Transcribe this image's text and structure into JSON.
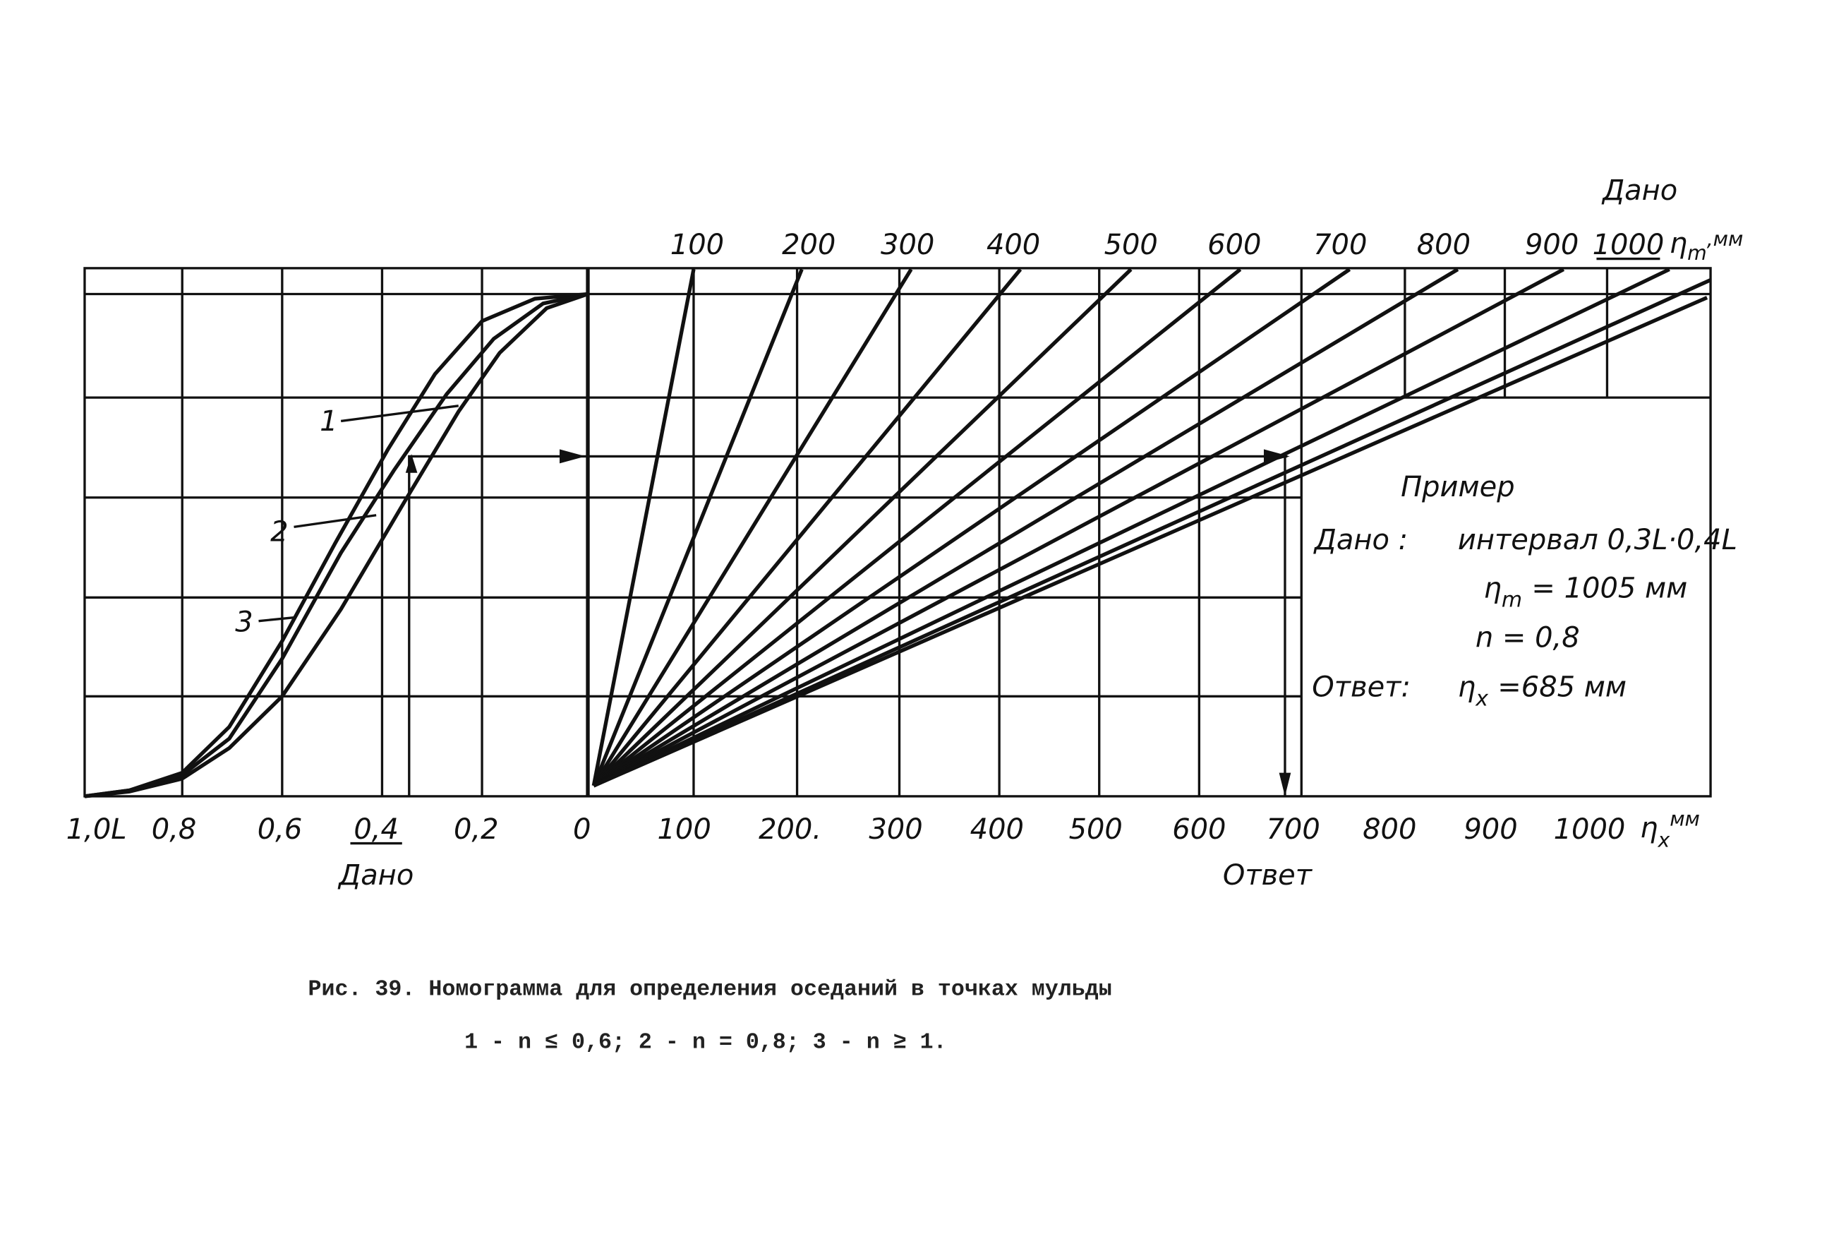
{
  "left_axis": {
    "ticks": [
      "1,0L",
      "0,8",
      "0,6",
      "0,4",
      "0,2",
      "0"
    ],
    "label": "Дано"
  },
  "curve_labels": [
    "1",
    "2",
    "3"
  ],
  "top_axis": {
    "label": "Дано",
    "ticks": [
      "100",
      "200",
      "300",
      "400",
      "500",
      "600",
      "700",
      "800",
      "900",
      "1000"
    ],
    "unit_symbol": "η",
    "unit_subscript": "m",
    "unit_suffix": ",мм"
  },
  "bottom_axis": {
    "ticks": [
      "100",
      "200.",
      "300",
      "400",
      "500",
      "600",
      "700",
      "800",
      "900",
      "1000"
    ],
    "label": "Ответ",
    "unit_symbol": "η",
    "unit_subscript": "x",
    "unit_suffix": "мм"
  },
  "example": {
    "title": "Пример",
    "given_label": "Дано :",
    "interval": "интервал 0,3L·0,4L",
    "eta_m_symbol": "η",
    "eta_m_subscript": "m",
    "eta_m_value": "= 1005 мм",
    "n_value": "n = 0,8",
    "answer_label": "Ответ:",
    "eta_x_symbol": "η",
    "eta_x_subscript": "x",
    "eta_x_value": "=685 мм"
  },
  "caption": {
    "line1": "Рис. 39. Номограмма для определения оседаний в точках мульды",
    "line2": "1 - n ≤ 0,6;  2 - n = 0,8;  3 - n ≥ 1."
  }
}
